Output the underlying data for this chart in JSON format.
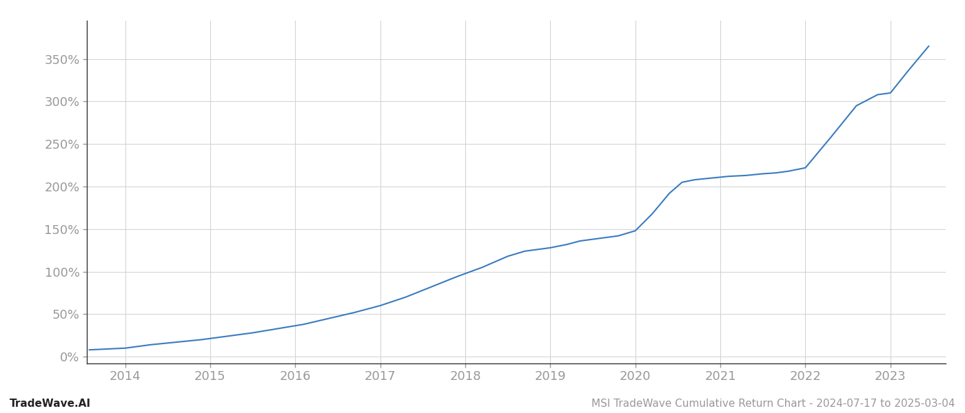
{
  "title": "MSI TradeWave Cumulative Return Chart - 2024-07-17 to 2025-03-04",
  "watermark": "TradeWave.AI",
  "line_color": "#3a7bbf",
  "background_color": "#ffffff",
  "grid_color": "#d0d0d0",
  "tick_label_color": "#999999",
  "x_years": [
    2014,
    2015,
    2016,
    2017,
    2018,
    2019,
    2020,
    2021,
    2022,
    2023
  ],
  "y_ticks": [
    0,
    50,
    100,
    150,
    200,
    250,
    300,
    350
  ],
  "ylim": [
    -8,
    395
  ],
  "xlim": [
    2013.55,
    2023.65
  ],
  "data_x": [
    2013.58,
    2014.0,
    2014.3,
    2014.6,
    2014.9,
    2015.2,
    2015.5,
    2015.8,
    2016.1,
    2016.4,
    2016.7,
    2017.0,
    2017.3,
    2017.6,
    2017.9,
    2018.2,
    2018.5,
    2018.7,
    2018.85,
    2019.0,
    2019.2,
    2019.35,
    2019.5,
    2019.65,
    2019.8,
    2020.0,
    2020.2,
    2020.4,
    2020.55,
    2020.7,
    2020.9,
    2021.1,
    2021.3,
    2021.5,
    2021.65,
    2021.8,
    2022.0,
    2022.3,
    2022.6,
    2022.85,
    2023.0,
    2023.2,
    2023.45
  ],
  "data_y": [
    8,
    10,
    14,
    17,
    20,
    24,
    28,
    33,
    38,
    45,
    52,
    60,
    70,
    82,
    94,
    105,
    118,
    124,
    126,
    128,
    132,
    136,
    138,
    140,
    142,
    148,
    168,
    192,
    205,
    208,
    210,
    212,
    213,
    215,
    216,
    218,
    222,
    258,
    295,
    308,
    310,
    335,
    365
  ],
  "line_width": 1.5,
  "tick_fontsize": 13,
  "footer_fontsize": 11,
  "title_fontsize": 11
}
